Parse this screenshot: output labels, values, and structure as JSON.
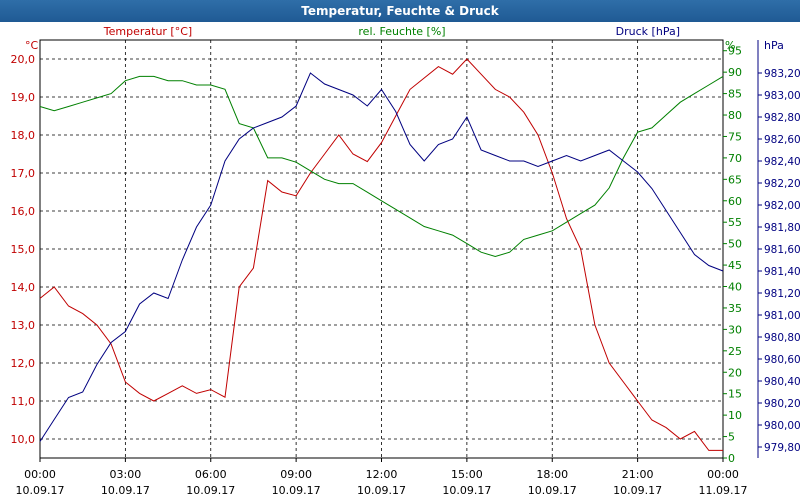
{
  "window": {
    "title": "Temperatur, Feuchte & Druck"
  },
  "chart_data": {
    "type": "line",
    "title": "Temperatur, Feuchte & Druck",
    "x_range_hours": [
      0,
      24
    ],
    "x_ticks": [
      {
        "hour": 0,
        "time": "00:00",
        "date": "10.09.17"
      },
      {
        "hour": 3,
        "time": "03:00",
        "date": "10.09.17"
      },
      {
        "hour": 6,
        "time": "06:00",
        "date": "10.09.17"
      },
      {
        "hour": 9,
        "time": "09:00",
        "date": "10.09.17"
      },
      {
        "hour": 12,
        "time": "12:00",
        "date": "10.09.17"
      },
      {
        "hour": 15,
        "time": "15:00",
        "date": "10.09.17"
      },
      {
        "hour": 18,
        "time": "18:00",
        "date": "10.09.17"
      },
      {
        "hour": 21,
        "time": "21:00",
        "date": "10.09.17"
      },
      {
        "hour": 24,
        "time": "00:00",
        "date": "11.09.17"
      }
    ],
    "axes": {
      "left": {
        "unit": "°C",
        "label": "Temperatur [°C]",
        "color": "#c00000",
        "range": [
          9.5,
          20.5
        ],
        "ticks": [
          "10,0",
          "11,0",
          "12,0",
          "13,0",
          "14,0",
          "15,0",
          "16,0",
          "17,0",
          "18,0",
          "19,0",
          "20,0"
        ]
      },
      "middle": {
        "unit": "%",
        "label": "rel. Feuchte [%]",
        "color": "#008000",
        "range": [
          0,
          97.5
        ],
        "ticks": [
          "0",
          "5",
          "10",
          "15",
          "20",
          "25",
          "30",
          "35",
          "40",
          "45",
          "50",
          "55",
          "60",
          "65",
          "70",
          "75",
          "80",
          "85",
          "90",
          "95"
        ]
      },
      "right": {
        "unit": "hPa",
        "label": "Druck [hPa]",
        "color": "#000080",
        "range": [
          979.7,
          983.5
        ],
        "ticks": [
          "979,80",
          "980,00",
          "980,20",
          "980,40",
          "980,60",
          "980,80",
          "981,00",
          "981,20",
          "981,40",
          "981,60",
          "981,80",
          "982,00",
          "982,20",
          "982,40",
          "982,60",
          "982,80",
          "983,00",
          "983,20"
        ]
      }
    },
    "series": [
      {
        "name": "Temperatur [°C]",
        "axis": "left",
        "color": "#c00000",
        "x": [
          0,
          0.5,
          1,
          1.5,
          2,
          2.5,
          3,
          3.5,
          4,
          4.5,
          5,
          5.5,
          6,
          6.5,
          7,
          7.5,
          8,
          8.5,
          9,
          9.5,
          10,
          10.5,
          11,
          11.5,
          12,
          12.5,
          13,
          13.5,
          14,
          14.5,
          15,
          15.5,
          16,
          16.5,
          17,
          17.5,
          18,
          18.5,
          19,
          19.5,
          20,
          20.5,
          21,
          21.5,
          22,
          22.5,
          23,
          23.5,
          24
        ],
        "values": [
          13.7,
          14.0,
          13.5,
          13.3,
          13.0,
          12.5,
          11.5,
          11.2,
          11.0,
          11.2,
          11.4,
          11.2,
          11.3,
          11.1,
          14.0,
          14.5,
          16.8,
          16.5,
          16.4,
          17.0,
          17.5,
          18.0,
          17.5,
          17.3,
          17.8,
          18.5,
          19.2,
          19.5,
          19.8,
          19.6,
          20.0,
          19.6,
          19.2,
          19.0,
          18.6,
          18.0,
          17.0,
          15.8,
          15.0,
          13.0,
          12.0,
          11.5,
          11.0,
          10.5,
          10.3,
          10.0,
          10.2,
          9.7,
          9.7
        ]
      },
      {
        "name": "rel. Feuchte [%]",
        "axis": "middle",
        "color": "#008000",
        "x": [
          0,
          0.5,
          1,
          1.5,
          2,
          2.5,
          3,
          3.5,
          4,
          4.5,
          5,
          5.5,
          6,
          6.5,
          7,
          7.5,
          8,
          8.5,
          9,
          9.5,
          10,
          10.5,
          11,
          11.5,
          12,
          12.5,
          13,
          13.5,
          14,
          14.5,
          15,
          15.5,
          16,
          16.5,
          17,
          17.5,
          18,
          18.5,
          19,
          19.5,
          20,
          20.5,
          21,
          21.5,
          22,
          22.5,
          23,
          23.5,
          24
        ],
        "values": [
          82,
          81,
          82,
          83,
          84,
          85,
          88,
          89,
          89,
          88,
          88,
          87,
          87,
          86,
          78,
          77,
          70,
          70,
          69,
          67,
          65,
          64,
          64,
          62,
          60,
          58,
          56,
          54,
          53,
          52,
          50,
          48,
          47,
          48,
          51,
          52,
          53,
          55,
          57,
          59,
          63,
          70,
          76,
          77,
          80,
          83,
          85,
          87,
          89
        ]
      },
      {
        "name": "Druck [hPa]",
        "axis": "right",
        "color": "#000080",
        "x": [
          0,
          0.5,
          1,
          1.5,
          2,
          2.5,
          3,
          3.5,
          4,
          4.5,
          5,
          5.5,
          6,
          6.5,
          7,
          7.5,
          8,
          8.5,
          9,
          9.5,
          10,
          10.5,
          11,
          11.5,
          12,
          12.5,
          13,
          13.5,
          14,
          14.5,
          15,
          15.5,
          16,
          16.5,
          17,
          17.5,
          18,
          18.5,
          19,
          19.5,
          20,
          20.5,
          21,
          21.5,
          22,
          22.5,
          23,
          23.5,
          24
        ],
        "values": [
          979.85,
          980.05,
          980.25,
          980.3,
          980.55,
          980.75,
          980.85,
          981.1,
          981.2,
          981.15,
          981.5,
          981.8,
          982.0,
          982.4,
          982.6,
          982.7,
          982.75,
          982.8,
          982.9,
          983.2,
          983.1,
          983.05,
          983.0,
          982.9,
          983.05,
          982.85,
          982.55,
          982.4,
          982.55,
          982.6,
          982.8,
          982.5,
          982.45,
          982.4,
          982.4,
          982.35,
          982.4,
          982.45,
          982.4,
          982.45,
          982.5,
          982.4,
          982.3,
          982.15,
          981.95,
          981.75,
          981.55,
          981.45,
          981.4
        ]
      }
    ]
  }
}
